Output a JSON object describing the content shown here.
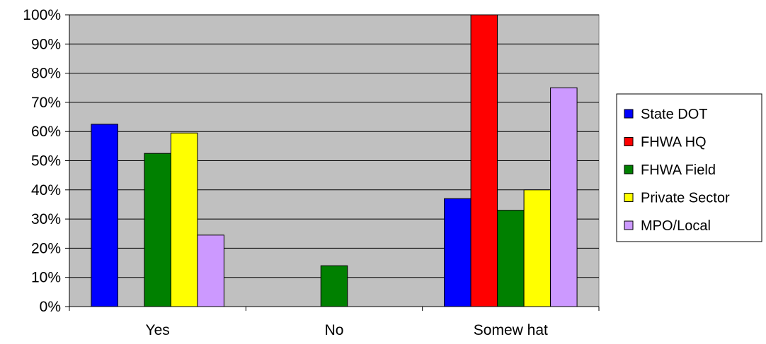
{
  "chart_data": {
    "type": "bar",
    "categories": [
      "Yes",
      "No",
      "Somew hat"
    ],
    "series": [
      {
        "name": "State DOT",
        "color": "#0000FF",
        "values": [
          62.5,
          0,
          37
        ]
      },
      {
        "name": "FHWA HQ",
        "color": "#FF0000",
        "values": [
          0,
          0,
          100
        ]
      },
      {
        "name": "FHWA Field",
        "color": "#008000",
        "values": [
          52.5,
          14,
          33
        ]
      },
      {
        "name": "Private Sector",
        "color": "#FFFF00",
        "values": [
          59.5,
          0,
          40
        ]
      },
      {
        "name": "MPO/Local",
        "color": "#CC99FF",
        "values": [
          24.5,
          0,
          75
        ]
      }
    ],
    "ylim": [
      0,
      100
    ],
    "yticks": [
      "0%",
      "10%",
      "20%",
      "30%",
      "40%",
      "50%",
      "60%",
      "70%",
      "80%",
      "90%",
      "100%"
    ],
    "grid": true,
    "plot_background": "#C0C0C0",
    "legend_position": "right",
    "title": "",
    "xlabel": "",
    "ylabel": ""
  }
}
